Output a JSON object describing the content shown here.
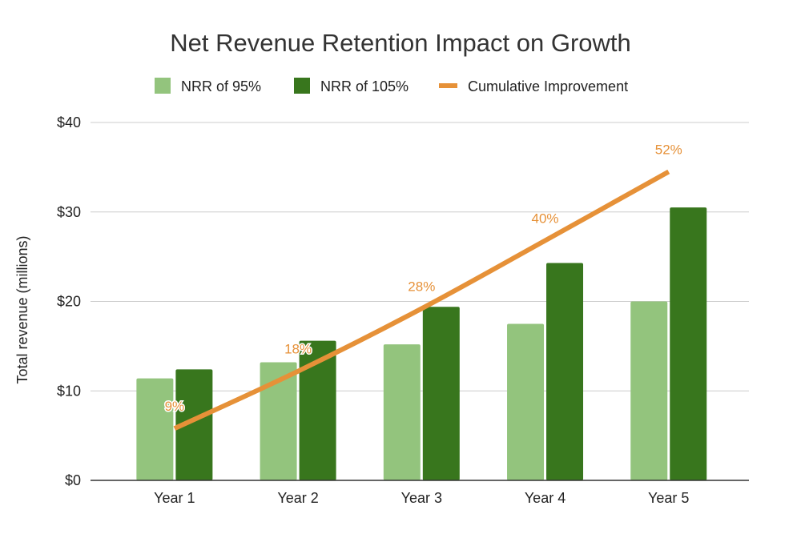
{
  "chart_data": {
    "type": "bar",
    "title": "Net Revenue Retention Impact on Growth",
    "xlabel": "",
    "ylabel": "Total revenue (millions)",
    "ylim": [
      0,
      40
    ],
    "yticks": [
      0,
      10,
      20,
      30,
      40
    ],
    "ytick_labels": [
      "$0",
      "$10",
      "$20",
      "$30",
      "$40"
    ],
    "grid": true,
    "legend_position": "top-center",
    "categories": [
      "Year 1",
      "Year 2",
      "Year 3",
      "Year 4",
      "Year 5"
    ],
    "series": [
      {
        "name": "NRR of 95%",
        "type": "bar",
        "color": "#93c47d",
        "values": [
          11.4,
          13.2,
          15.2,
          17.5,
          20.0
        ]
      },
      {
        "name": "NRR of 105%",
        "type": "bar",
        "color": "#38761d",
        "values": [
          12.4,
          15.6,
          19.4,
          24.3,
          30.5
        ]
      }
    ],
    "overlay": {
      "name": "Cumulative Improvement",
      "type": "line",
      "color": "#e69138",
      "plotted_values": [
        5.8,
        12.2,
        19.2,
        26.8,
        34.5
      ],
      "labels": [
        "9%",
        "18%",
        "28%",
        "40%",
        "52%"
      ]
    }
  }
}
